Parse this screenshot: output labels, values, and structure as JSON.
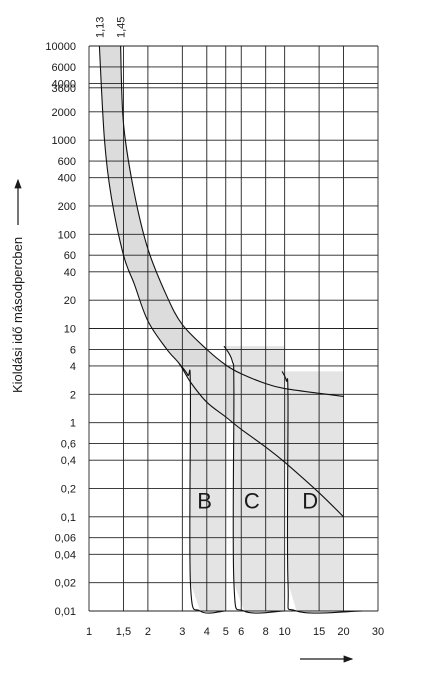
{
  "chart_data": {
    "type": "line",
    "title": "",
    "xlabel": "",
    "ylabel": "Kioldási idő másodpercben",
    "x_scale": "log",
    "y_scale": "log",
    "xlim": [
      1,
      30
    ],
    "ylim": [
      0.01,
      10000
    ],
    "x_ticks": [
      {
        "value": 1,
        "label": "1"
      },
      {
        "value": 1.5,
        "label": "1,5"
      },
      {
        "value": 2,
        "label": "2"
      },
      {
        "value": 3,
        "label": "3"
      },
      {
        "value": 4,
        "label": "4"
      },
      {
        "value": 5,
        "label": "5"
      },
      {
        "value": 6,
        "label": "6"
      },
      {
        "value": 8,
        "label": "8"
      },
      {
        "value": 10,
        "label": "10"
      },
      {
        "value": 15,
        "label": "15"
      },
      {
        "value": 20,
        "label": "20"
      },
      {
        "value": 30,
        "label": "30"
      }
    ],
    "y_ticks": [
      {
        "value": 10000,
        "label": "10000"
      },
      {
        "value": 6000,
        "label": "6000"
      },
      {
        "value": 4000,
        "label": "4000"
      },
      {
        "value": 3600,
        "label": "3600"
      },
      {
        "value": 2000,
        "label": "2000"
      },
      {
        "value": 1000,
        "label": "1000"
      },
      {
        "value": 600,
        "label": "600"
      },
      {
        "value": 400,
        "label": "400"
      },
      {
        "value": 200,
        "label": "200"
      },
      {
        "value": 100,
        "label": "100"
      },
      {
        "value": 60,
        "label": "60"
      },
      {
        "value": 40,
        "label": "40"
      },
      {
        "value": 20,
        "label": "20"
      },
      {
        "value": 10,
        "label": "10"
      },
      {
        "value": 6,
        "label": "6"
      },
      {
        "value": 4,
        "label": "4"
      },
      {
        "value": 2,
        "label": "2"
      },
      {
        "value": 1,
        "label": "1"
      },
      {
        "value": 0.6,
        "label": "0,6"
      },
      {
        "value": 0.4,
        "label": "0,4"
      },
      {
        "value": 0.2,
        "label": "0,2"
      },
      {
        "value": 0.1,
        "label": "0,1"
      },
      {
        "value": 0.06,
        "label": "0,06"
      },
      {
        "value": 0.04,
        "label": "0,04"
      },
      {
        "value": 0.02,
        "label": "0,02"
      },
      {
        "value": 0.01,
        "label": "0,01"
      }
    ],
    "top_labels": [
      {
        "value": 1.13,
        "label": "1,13"
      },
      {
        "value": 1.45,
        "label": "1,45"
      }
    ],
    "grid": true,
    "thermal_band": {
      "lower": [
        [
          1.13,
          10000
        ],
        [
          1.2,
          1000
        ],
        [
          1.3,
          250
        ],
        [
          1.5,
          60
        ],
        [
          1.7,
          30
        ],
        [
          2,
          12
        ],
        [
          2.5,
          6
        ],
        [
          2.9,
          4.2
        ],
        [
          3.3,
          2.7
        ],
        [
          4,
          1.65
        ],
        [
          5,
          1.15
        ],
        [
          6,
          0.85
        ],
        [
          8,
          0.55
        ],
        [
          10,
          0.38
        ],
        [
          15,
          0.18
        ],
        [
          20,
          0.1
        ]
      ],
      "upper": [
        [
          1.45,
          10000
        ],
        [
          1.5,
          1500
        ],
        [
          1.7,
          280
        ],
        [
          2,
          70
        ],
        [
          2.5,
          22
        ],
        [
          3,
          11
        ],
        [
          4,
          6
        ],
        [
          5,
          4.1
        ],
        [
          6,
          3.3
        ],
        [
          8,
          2.6
        ],
        [
          10,
          2.3
        ],
        [
          15,
          2.05
        ],
        [
          20,
          1.9
        ]
      ]
    },
    "series": [
      {
        "name": "B",
        "magnetic_range": [
          3,
          5
        ],
        "boundary": [
          [
            2.9,
            4.2
          ],
          [
            3.2,
            3.2
          ],
          [
            3.3,
            2.3
          ],
          [
            3.3,
            0.02
          ],
          [
            3.7,
            0.01
          ],
          [
            5,
            0.01
          ]
        ]
      },
      {
        "name": "C",
        "magnetic_range": [
          5,
          10
        ],
        "boundary": [
          [
            4.9,
            6.5
          ],
          [
            5.4,
            4.5
          ],
          [
            5.5,
            2.2
          ],
          [
            5.5,
            0.02
          ],
          [
            6.2,
            0.01
          ],
          [
            10,
            0.01
          ]
        ]
      },
      {
        "name": "D",
        "magnetic_range": [
          10,
          20
        ],
        "boundary": [
          [
            9.7,
            3.5
          ],
          [
            10.2,
            2.8
          ],
          [
            10.4,
            1.8
          ],
          [
            10.4,
            0.02
          ],
          [
            11.5,
            0.01
          ],
          [
            25,
            0.01
          ]
        ]
      }
    ],
    "labels_in_plot": [
      {
        "label": "B",
        "x": 3.9,
        "y": 0.15
      },
      {
        "label": "C",
        "x": 6.8,
        "y": 0.15
      },
      {
        "label": "D",
        "x": 13.5,
        "y": 0.15
      }
    ]
  }
}
